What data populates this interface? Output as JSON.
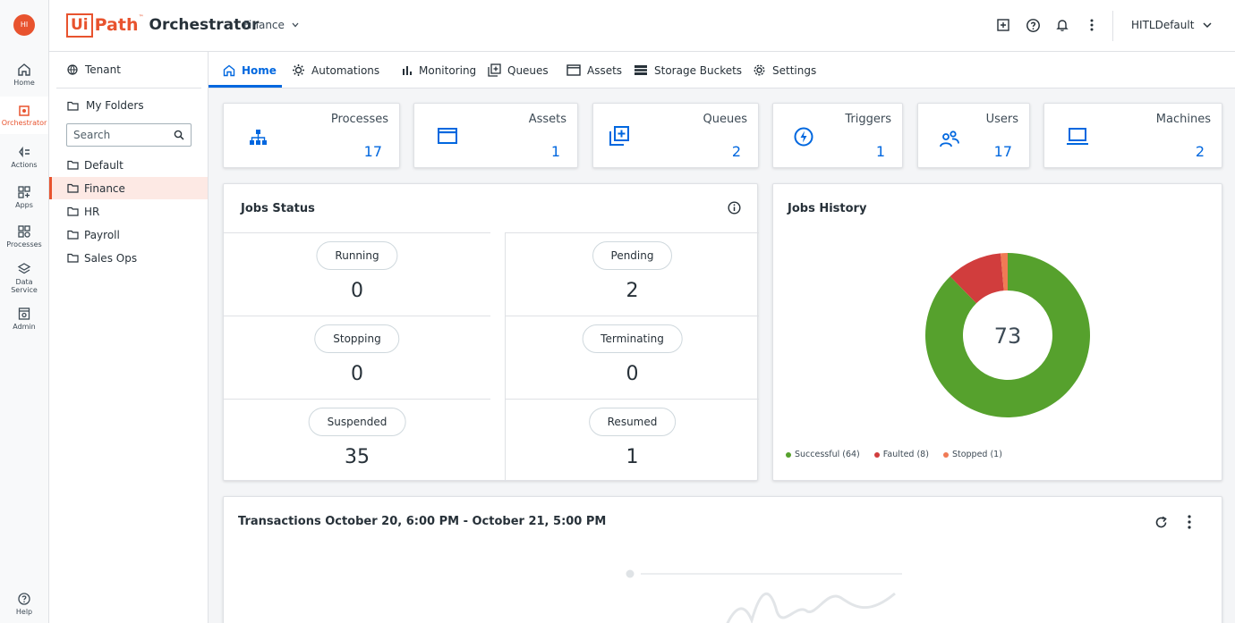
{
  "rail": {
    "avatar_initials": "HI",
    "items": [
      {
        "label": "Home",
        "icon": "home-icon"
      },
      {
        "label": "Orchestrator",
        "icon": "orchestrator-icon"
      },
      {
        "label": "Actions",
        "icon": "actions-icon"
      },
      {
        "label": "Apps",
        "icon": "apps-icon"
      },
      {
        "label": "Processes",
        "icon": "processes-icon"
      },
      {
        "label": "Data",
        "label2": "Service",
        "icon": "data-service-icon"
      },
      {
        "label": "Admin",
        "icon": "admin-icon"
      },
      {
        "label": "Help",
        "icon": "help-icon"
      }
    ]
  },
  "header": {
    "logo_ui": "Ui",
    "logo_path": "Path",
    "logo_tm": "™",
    "app_name": "Orchestrator",
    "tenant": "Finance",
    "user": "HITLDefault"
  },
  "folders": {
    "tenant_label": "Tenant",
    "my_folders_label": "My Folders",
    "search_placeholder": "Search",
    "items": [
      "Default",
      "Finance",
      "HR",
      "Payroll",
      "Sales Ops"
    ],
    "selected": "Finance"
  },
  "tabs": [
    {
      "label": "Home",
      "icon": "home-icon"
    },
    {
      "label": "Automations",
      "icon": "automations-icon"
    },
    {
      "label": "Monitoring",
      "icon": "monitoring-icon"
    },
    {
      "label": "Queues",
      "icon": "queues-icon"
    },
    {
      "label": "Assets",
      "icon": "assets-icon"
    },
    {
      "label": "Storage Buckets",
      "icon": "storage-buckets-icon"
    },
    {
      "label": "Settings",
      "icon": "settings-icon"
    }
  ],
  "stats": [
    {
      "label": "Processes",
      "value": "17",
      "icon": "processes-icon"
    },
    {
      "label": "Assets",
      "value": "1",
      "icon": "assets-icon"
    },
    {
      "label": "Queues",
      "value": "2",
      "icon": "queues-icon"
    },
    {
      "label": "Triggers",
      "value": "1",
      "icon": "triggers-icon"
    },
    {
      "label": "Users",
      "value": "17",
      "icon": "users-icon"
    },
    {
      "label": "Machines",
      "value": "2",
      "icon": "machines-icon"
    }
  ],
  "jobs_status": {
    "title": "Jobs Status",
    "cells": [
      {
        "label": "Running",
        "value": "0"
      },
      {
        "label": "Pending",
        "value": "2"
      },
      {
        "label": "Stopping",
        "value": "0"
      },
      {
        "label": "Terminating",
        "value": "0"
      },
      {
        "label": "Suspended",
        "value": "35"
      },
      {
        "label": "Resumed",
        "value": "1"
      }
    ]
  },
  "jobs_history": {
    "title": "Jobs History",
    "total": "73"
  },
  "chart_data": {
    "type": "pie",
    "categories": [
      "Successful",
      "Faulted",
      "Stopped"
    ],
    "values": [
      64,
      8,
      1
    ],
    "legend": [
      "Successful (64)",
      "Faulted (8)",
      "Stopped (1)"
    ],
    "colors": [
      "#56a12d",
      "#d13d3d",
      "#f07a55"
    ],
    "legend_position": "bottom-left"
  },
  "transactions": {
    "title": "Transactions October 20, 6:00 PM - October 21, 5:00 PM"
  },
  "colors": {
    "accent": "#0067df",
    "brand": "#e8532e"
  }
}
